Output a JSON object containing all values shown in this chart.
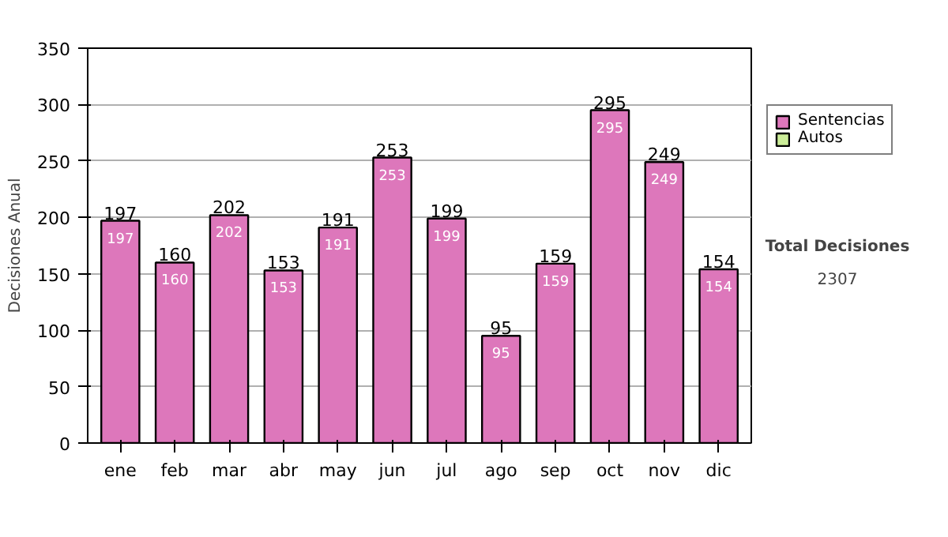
{
  "chart_data": {
    "type": "bar",
    "stacked": true,
    "ylabel": "Decisiones Anual",
    "categories": [
      "ene",
      "feb",
      "mar",
      "abr",
      "may",
      "jun",
      "jul",
      "ago",
      "sep",
      "oct",
      "nov",
      "dic"
    ],
    "series": [
      {
        "name": "Sentencias",
        "color": "#dd77bb",
        "values": [
          197,
          160,
          202,
          153,
          191,
          253,
          199,
          95,
          159,
          295,
          249,
          154
        ]
      },
      {
        "name": "Autos",
        "color": "#ccee99",
        "values": [
          null,
          null,
          null,
          null,
          null,
          null,
          null,
          null,
          null,
          null,
          null,
          null
        ]
      }
    ],
    "data_labels": true,
    "totals": [
      "197",
      "160",
      "202",
      "153",
      "191",
      "253",
      "199",
      "95",
      "159",
      "295",
      "249",
      "154"
    ],
    "ylim": [
      0,
      350
    ],
    "yticks": [
      0,
      50,
      100,
      150,
      200,
      250,
      300,
      350
    ],
    "grid": "y",
    "legend": "right",
    "annotations": [
      "Total Decisiones",
      "2307"
    ]
  }
}
